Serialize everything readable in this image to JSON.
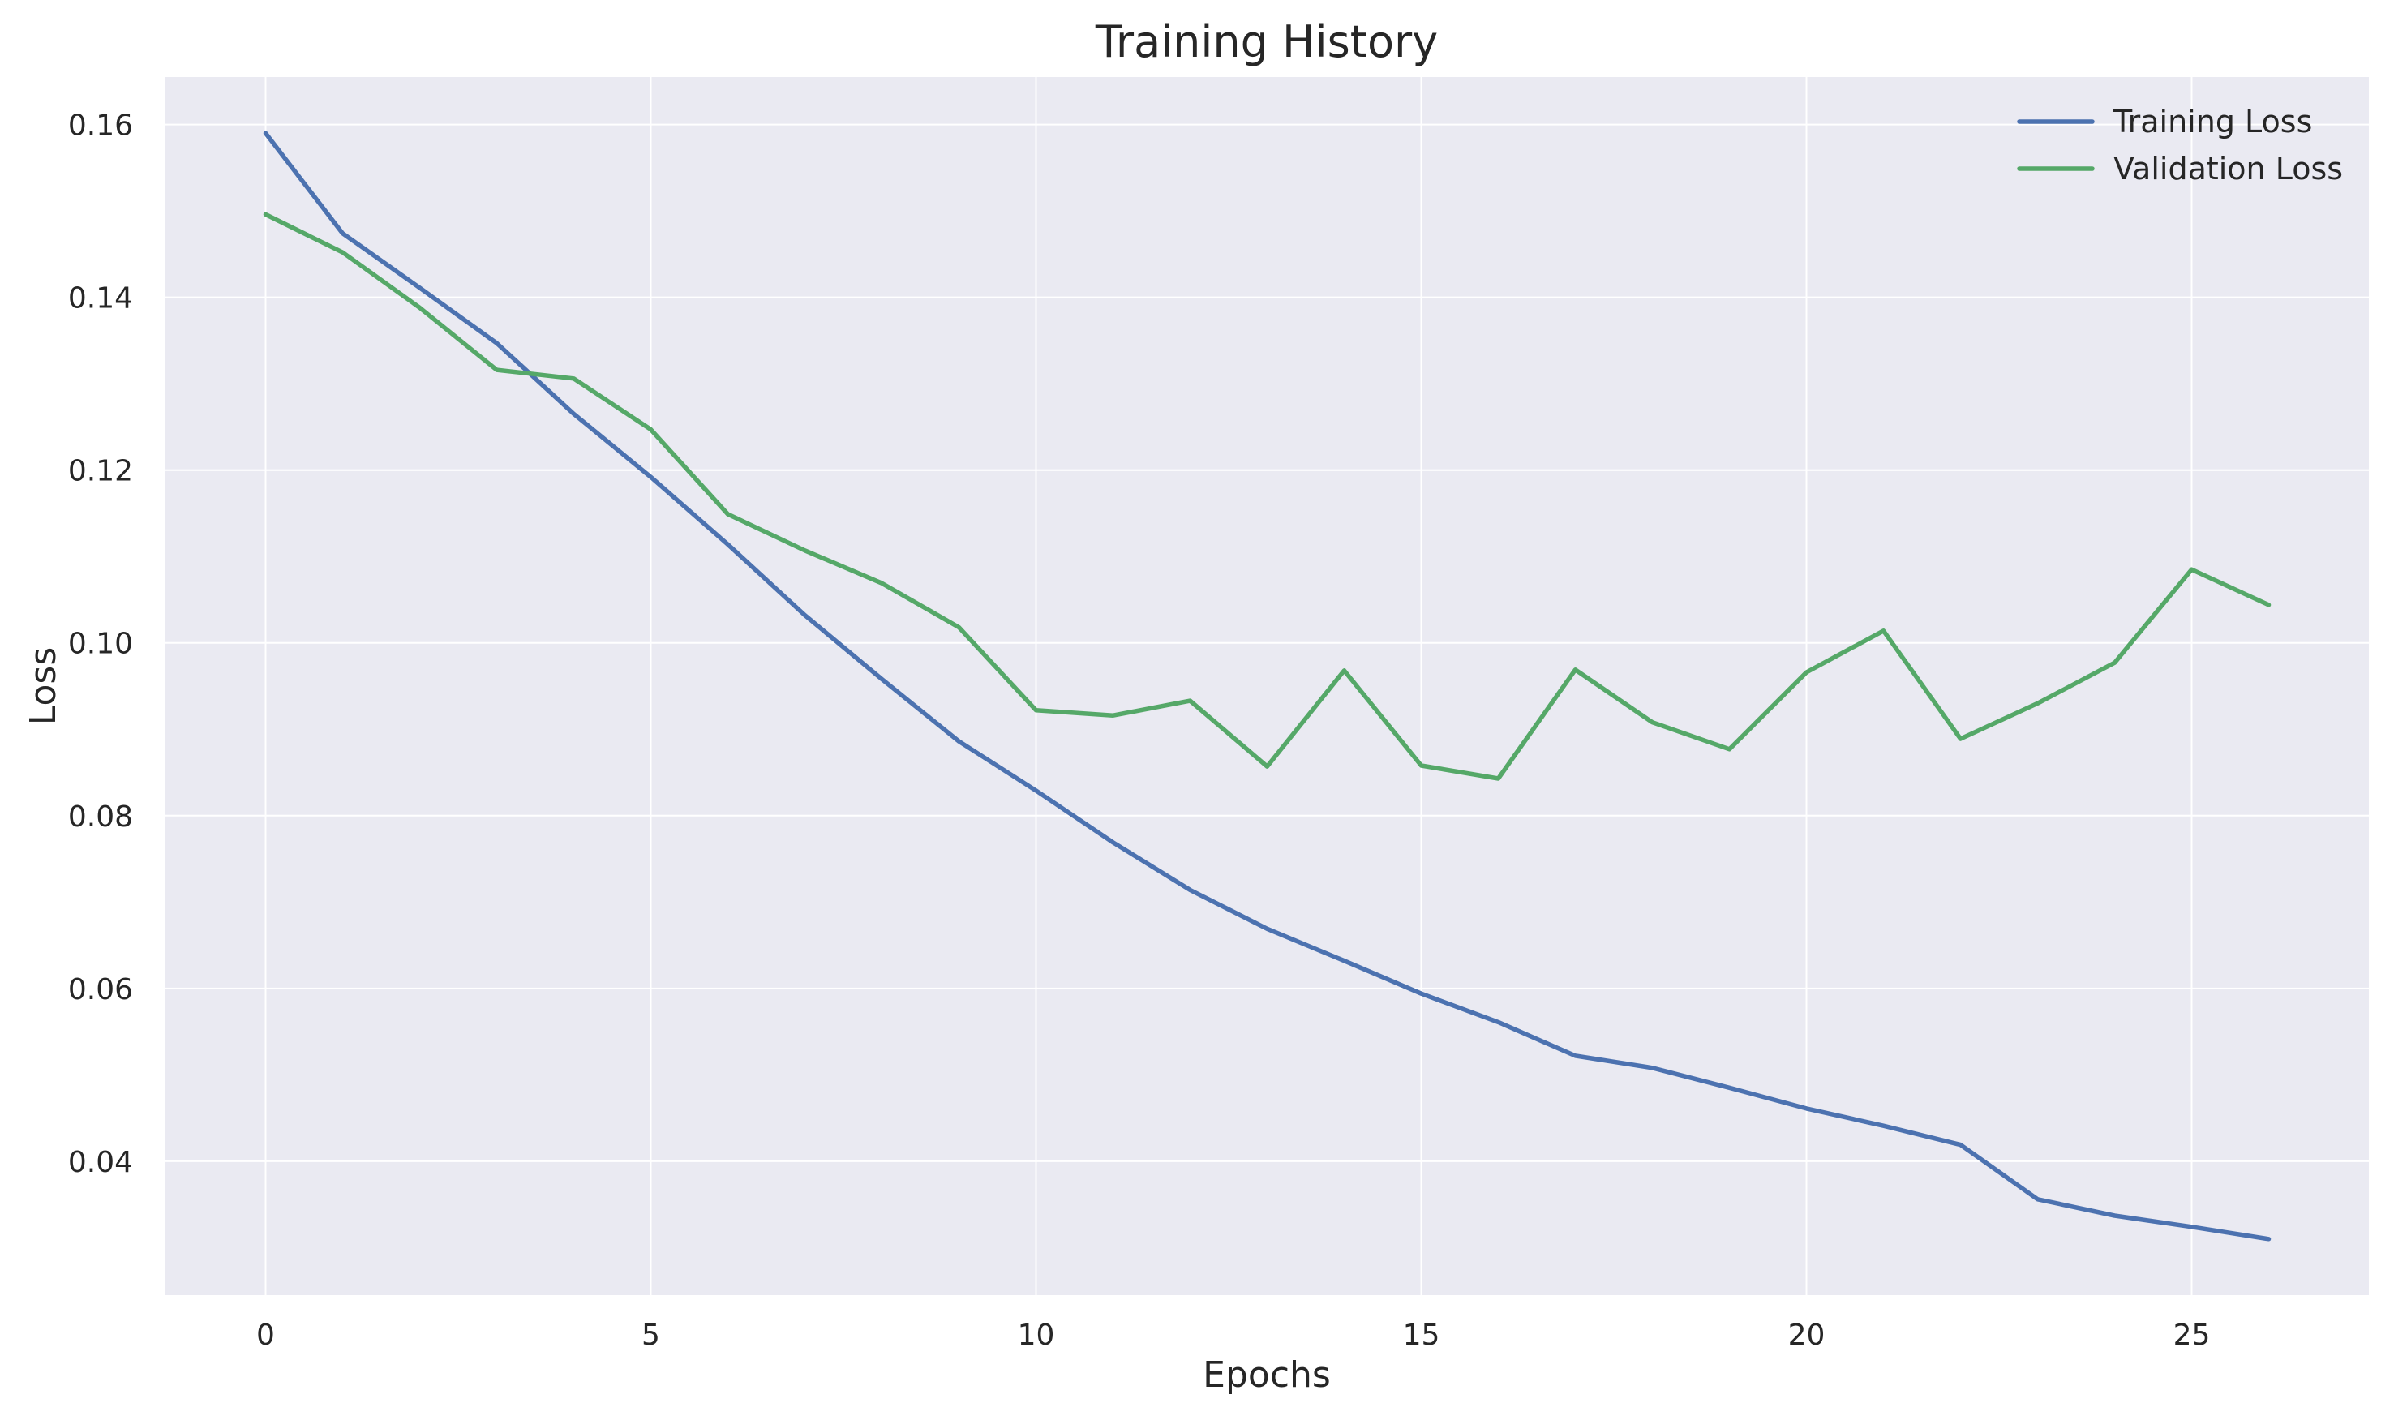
{
  "chart_data": {
    "type": "line",
    "title": "Training History",
    "xlabel": "Epochs",
    "ylabel": "Loss",
    "xlim": [
      -1.3,
      27.3
    ],
    "ylim": [
      0.0245,
      0.1655
    ],
    "xticks": [
      0,
      5,
      10,
      15,
      20,
      25
    ],
    "yticks": [
      0.04,
      0.06,
      0.08,
      0.1,
      0.12,
      0.14,
      0.16
    ],
    "ytick_labels": [
      "0.04",
      "0.06",
      "0.08",
      "0.10",
      "0.12",
      "0.14",
      "0.16"
    ],
    "grid": true,
    "legend_position": "top-right",
    "x": [
      0,
      1,
      2,
      3,
      4,
      5,
      6,
      7,
      8,
      9,
      10,
      11,
      12,
      13,
      14,
      15,
      16,
      17,
      18,
      19,
      20,
      21,
      22,
      23,
      24,
      25,
      26
    ],
    "series": [
      {
        "name": "Training Loss",
        "color": "#4c72b0",
        "values": [
          0.159,
          0.1474,
          0.1411,
          0.1347,
          0.1265,
          0.1192,
          0.1114,
          0.1032,
          0.0958,
          0.0886,
          0.0829,
          0.0769,
          0.0714,
          0.0669,
          0.0632,
          0.0594,
          0.0561,
          0.0522,
          0.0508,
          0.0485,
          0.0461,
          0.0441,
          0.0419,
          0.0356,
          0.0337,
          0.0324,
          0.031
        ]
      },
      {
        "name": "Validation Loss",
        "color": "#55a868",
        "values": [
          0.1496,
          0.1452,
          0.1388,
          0.1316,
          0.1306,
          0.1247,
          0.1149,
          0.1107,
          0.1069,
          0.1018,
          0.0922,
          0.0916,
          0.0933,
          0.0857,
          0.0968,
          0.0858,
          0.0843,
          0.0969,
          0.0908,
          0.0877,
          0.0966,
          0.1014,
          0.0889,
          0.093,
          0.0977,
          0.1085,
          0.1044
        ]
      }
    ]
  }
}
